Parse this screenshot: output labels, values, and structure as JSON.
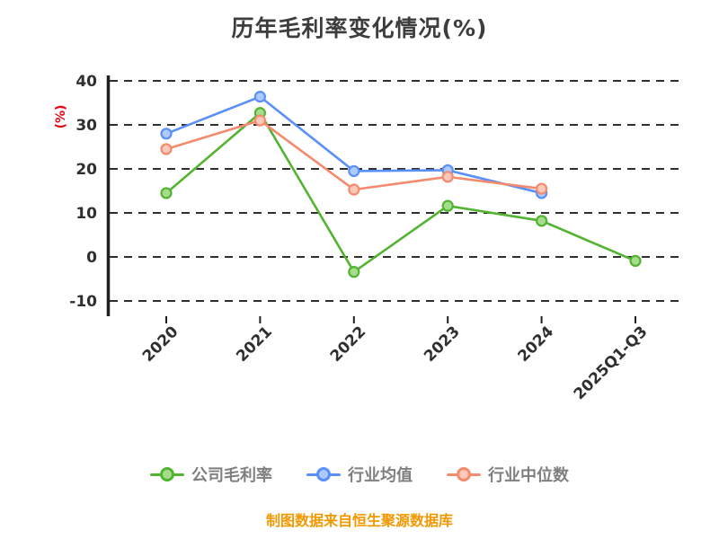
{
  "chart_data": {
    "type": "line",
    "title": "历年毛利率变化情况(%)",
    "ylabel": "(%)",
    "footer": "制图数据来自恒生聚源数据库",
    "categories": [
      "2020",
      "2021",
      "2022",
      "2023",
      "2024",
      "2025Q1-Q3"
    ],
    "yticks": [
      40,
      30,
      20,
      10,
      0,
      -10
    ],
    "ylim": [
      -10,
      40
    ],
    "grid": "horizontal-dashed",
    "legend_position": "bottom",
    "series": [
      {
        "name": "公司毛利率",
        "color": "#53b332",
        "color_light": "#a6dd8d",
        "values": [
          14.5,
          32.7,
          -3.4,
          11.6,
          8.2,
          -0.9
        ]
      },
      {
        "name": "行业均值",
        "color": "#5b8ff9",
        "color_light": "#b0c9fb",
        "values": [
          28.0,
          36.4,
          19.5,
          19.7,
          14.5,
          null
        ]
      },
      {
        "name": "行业中位数",
        "color": "#f58b6e",
        "color_light": "#fbc9ba",
        "values": [
          24.5,
          31.0,
          15.3,
          18.2,
          15.5,
          null
        ]
      }
    ]
  },
  "footer": "制图数据来自恒生聚源数据库",
  "colors": {
    "background": "#ffffff",
    "title": "#3d3d3d",
    "axis": "#1f1f1f",
    "tick_labels": "#2f2f2f",
    "ylabel": "#e60012",
    "legend_text": "#7f7f7f",
    "footer": "#f39800"
  }
}
